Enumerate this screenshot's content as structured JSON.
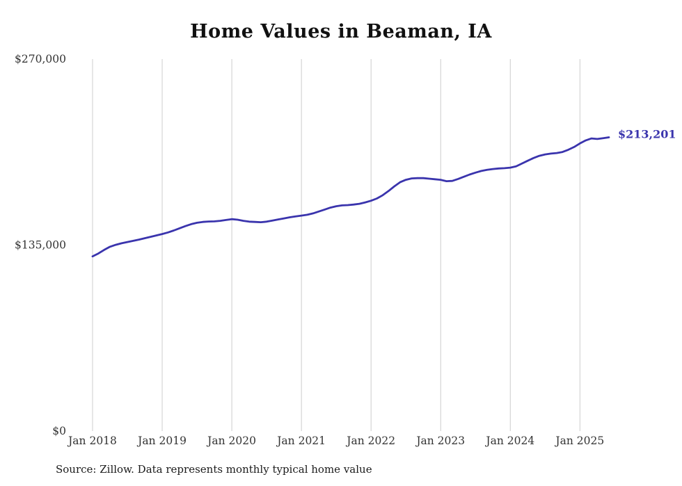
{
  "chart_data": {
    "type": "line",
    "title": "Home Values in Beaman, IA",
    "source": "Source: Zillow. Data represents monthly typical home value",
    "x_start": "Jan 2018",
    "x_frequency": "monthly",
    "series": [
      {
        "name": "Typical home value",
        "values": [
          126800,
          128900,
          131500,
          133800,
          135200,
          136300,
          137200,
          138100,
          139000,
          140000,
          141000,
          142000,
          143000,
          144200,
          145600,
          147200,
          148800,
          150200,
          151200,
          151800,
          152100,
          152200,
          152600,
          153200,
          153800,
          153400,
          152600,
          152000,
          151800,
          151600,
          152000,
          152800,
          153600,
          154400,
          155200,
          155800,
          156400,
          157000,
          158000,
          159400,
          160800,
          162200,
          163200,
          163800,
          164000,
          164400,
          165000,
          166000,
          167200,
          168800,
          171200,
          174200,
          177600,
          180600,
          182400,
          183400,
          183600,
          183600,
          183200,
          182800,
          182400,
          181400,
          181600,
          183000,
          184600,
          186200,
          187600,
          188800,
          189600,
          190200,
          190600,
          190800,
          191200,
          192200,
          194200,
          196200,
          198200,
          199800,
          200800,
          201400,
          201800,
          202600,
          204200,
          206200,
          208800,
          211000,
          212400,
          212000,
          212600,
          213201
        ]
      }
    ],
    "x_tick_labels": [
      "Jan 2018",
      "Jan 2019",
      "Jan 2020",
      "Jan 2021",
      "Jan 2022",
      "Jan 2023",
      "Jan 2024",
      "Jan 2025"
    ],
    "x_tick_indices": [
      0,
      12,
      24,
      36,
      48,
      60,
      72,
      84
    ],
    "y_ticks": [
      {
        "value": 0,
        "label": "$0"
      },
      {
        "value": 135000,
        "label": "$135,000"
      },
      {
        "value": 270000,
        "label": "$270,000"
      }
    ],
    "ylim": [
      0,
      270000
    ],
    "grid": "vertical",
    "legend": "none",
    "end_label": "$213,201",
    "colors": {
      "line": "#3a34ad",
      "end_label": "#3a34ad",
      "grid": "#cccccc",
      "tick_text": "#333333"
    }
  }
}
